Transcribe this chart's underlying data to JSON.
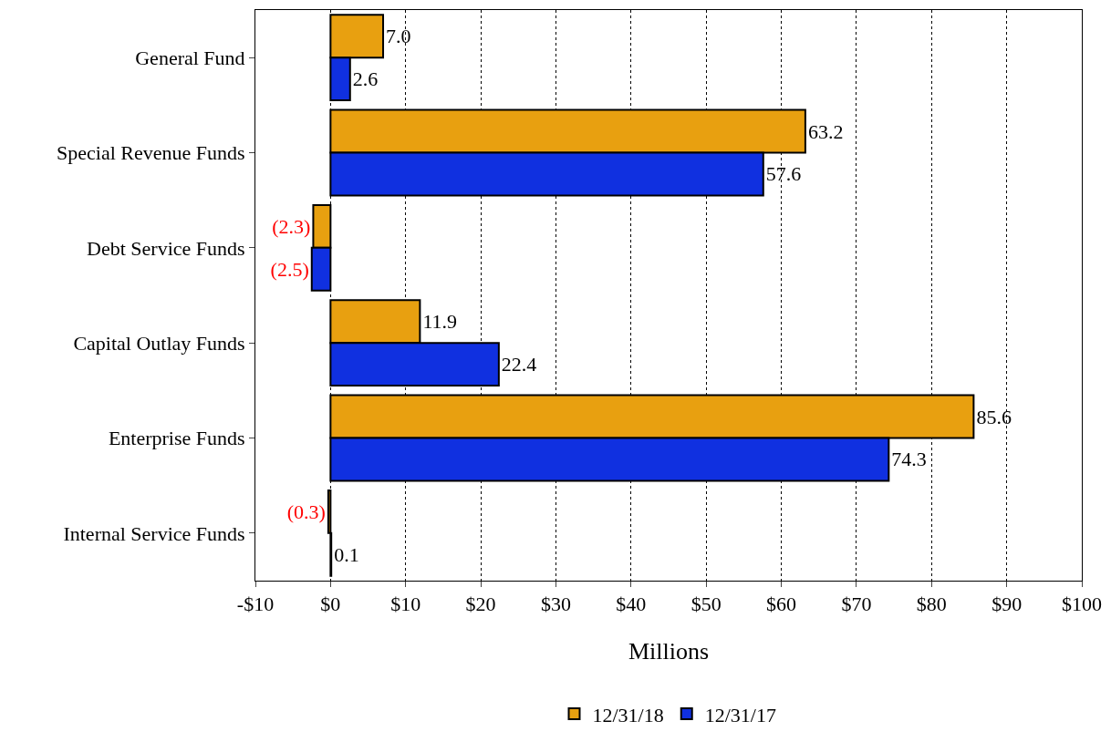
{
  "chart_data": {
    "type": "bar",
    "orientation": "horizontal",
    "xlabel": "Millions",
    "categories": [
      "General Fund",
      "Special Revenue Funds",
      "Debt Service Funds",
      "Capital Outlay Funds",
      "Enterprise Funds",
      "Internal Service Funds"
    ],
    "series": [
      {
        "name": "12/31/18",
        "color": "#e8a010",
        "values": [
          7.0,
          63.2,
          -2.3,
          11.9,
          85.6,
          -0.3
        ],
        "value_labels": [
          "7.0",
          "63.2",
          "(2.3)",
          "11.9",
          "85.6",
          "(0.3)"
        ]
      },
      {
        "name": "12/31/17",
        "color": "#1030e0",
        "values": [
          2.6,
          57.6,
          -2.5,
          22.4,
          74.3,
          0.1
        ],
        "value_labels": [
          "2.6",
          "57.6",
          "(2.5)",
          "22.4",
          "74.3",
          "0.1"
        ]
      }
    ],
    "xlim": [
      -10,
      100
    ],
    "xticks": [
      {
        "value": -10,
        "label": "-$10"
      },
      {
        "value": 0,
        "label": "$0"
      },
      {
        "value": 10,
        "label": "$10"
      },
      {
        "value": 20,
        "label": "$20"
      },
      {
        "value": 30,
        "label": "$30"
      },
      {
        "value": 40,
        "label": "$40"
      },
      {
        "value": 50,
        "label": "$50"
      },
      {
        "value": 60,
        "label": "$60"
      },
      {
        "value": 70,
        "label": "$70"
      },
      {
        "value": 80,
        "label": "$80"
      },
      {
        "value": 90,
        "label": "$90"
      },
      {
        "value": 100,
        "label": "$100"
      }
    ],
    "grid": "x",
    "legend": "bottom"
  }
}
